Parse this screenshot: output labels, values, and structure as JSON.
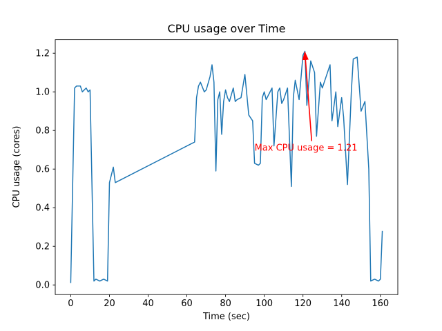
{
  "chart_data": {
    "type": "line",
    "title": "CPU usage over Time",
    "xlabel": "Time (sec)",
    "ylabel": "CPU usage (cores)",
    "xlim": [
      -8,
      169
    ],
    "ylim": [
      -0.05,
      1.27
    ],
    "xticks": [
      0,
      20,
      40,
      60,
      80,
      100,
      120,
      140,
      160
    ],
    "yticks": [
      0.0,
      0.2,
      0.4,
      0.6,
      0.8,
      1.0,
      1.2
    ],
    "grid": false,
    "legend": "none",
    "line_color": "#1f77b4",
    "annotation": {
      "text": "Max CPU usage = 1.21",
      "color": "#ff0000",
      "point_xy": [
        121,
        1.205
      ],
      "arrow_tail_xy": [
        124.5,
        0.745
      ],
      "text_xy": [
        95,
        0.695
      ]
    },
    "series": [
      {
        "name": "CPU usage",
        "points": [
          [
            0,
            0.01
          ],
          [
            2,
            1.02
          ],
          [
            3,
            1.03
          ],
          [
            5,
            1.03
          ],
          [
            6,
            1.0
          ],
          [
            8,
            1.02
          ],
          [
            9,
            1.0
          ],
          [
            10,
            1.01
          ],
          [
            12,
            0.02
          ],
          [
            13,
            0.03
          ],
          [
            15,
            0.02
          ],
          [
            17,
            0.03
          ],
          [
            19,
            0.02
          ],
          [
            20,
            0.53
          ],
          [
            22,
            0.61
          ],
          [
            23,
            0.53
          ],
          [
            62,
            0.73
          ],
          [
            64,
            0.74
          ],
          [
            65,
            0.97
          ],
          [
            66,
            1.03
          ],
          [
            67,
            1.05
          ],
          [
            69,
            1.0
          ],
          [
            70,
            1.01
          ],
          [
            72,
            1.08
          ],
          [
            73,
            1.14
          ],
          [
            74,
            1.05
          ],
          [
            75,
            0.59
          ],
          [
            76,
            0.96
          ],
          [
            77,
            1.0
          ],
          [
            78,
            0.78
          ],
          [
            79,
            0.95
          ],
          [
            80,
            1.01
          ],
          [
            81,
            0.97
          ],
          [
            82,
            0.95
          ],
          [
            84,
            1.02
          ],
          [
            85,
            0.95
          ],
          [
            86,
            0.96
          ],
          [
            88,
            0.97
          ],
          [
            90,
            1.09
          ],
          [
            92,
            0.88
          ],
          [
            94,
            0.85
          ],
          [
            95,
            0.63
          ],
          [
            97,
            0.62
          ],
          [
            98,
            0.63
          ],
          [
            99,
            0.97
          ],
          [
            100,
            1.0
          ],
          [
            101,
            0.96
          ],
          [
            102,
            0.98
          ],
          [
            104,
            1.02
          ],
          [
            105,
            0.72
          ],
          [
            107,
            1.0
          ],
          [
            108,
            1.02
          ],
          [
            109,
            0.94
          ],
          [
            110,
            0.96
          ],
          [
            112,
            1.02
          ],
          [
            114,
            0.51
          ],
          [
            115,
            0.97
          ],
          [
            116,
            1.06
          ],
          [
            118,
            0.96
          ],
          [
            120,
            1.19
          ],
          [
            121,
            1.21
          ],
          [
            122,
            0.93
          ],
          [
            124,
            1.16
          ],
          [
            126,
            1.1
          ],
          [
            127,
            0.77
          ],
          [
            129,
            1.05
          ],
          [
            130,
            1.02
          ],
          [
            132,
            1.08
          ],
          [
            134,
            1.14
          ],
          [
            135,
            0.85
          ],
          [
            137,
            1.0
          ],
          [
            138,
            0.82
          ],
          [
            140,
            0.97
          ],
          [
            141,
            0.87
          ],
          [
            143,
            0.52
          ],
          [
            145,
            1.0
          ],
          [
            146,
            1.17
          ],
          [
            148,
            1.18
          ],
          [
            150,
            0.9
          ],
          [
            152,
            0.95
          ],
          [
            154,
            0.6
          ],
          [
            155,
            0.02
          ],
          [
            157,
            0.03
          ],
          [
            159,
            0.02
          ],
          [
            160,
            0.03
          ],
          [
            161,
            0.28
          ]
        ]
      }
    ]
  }
}
